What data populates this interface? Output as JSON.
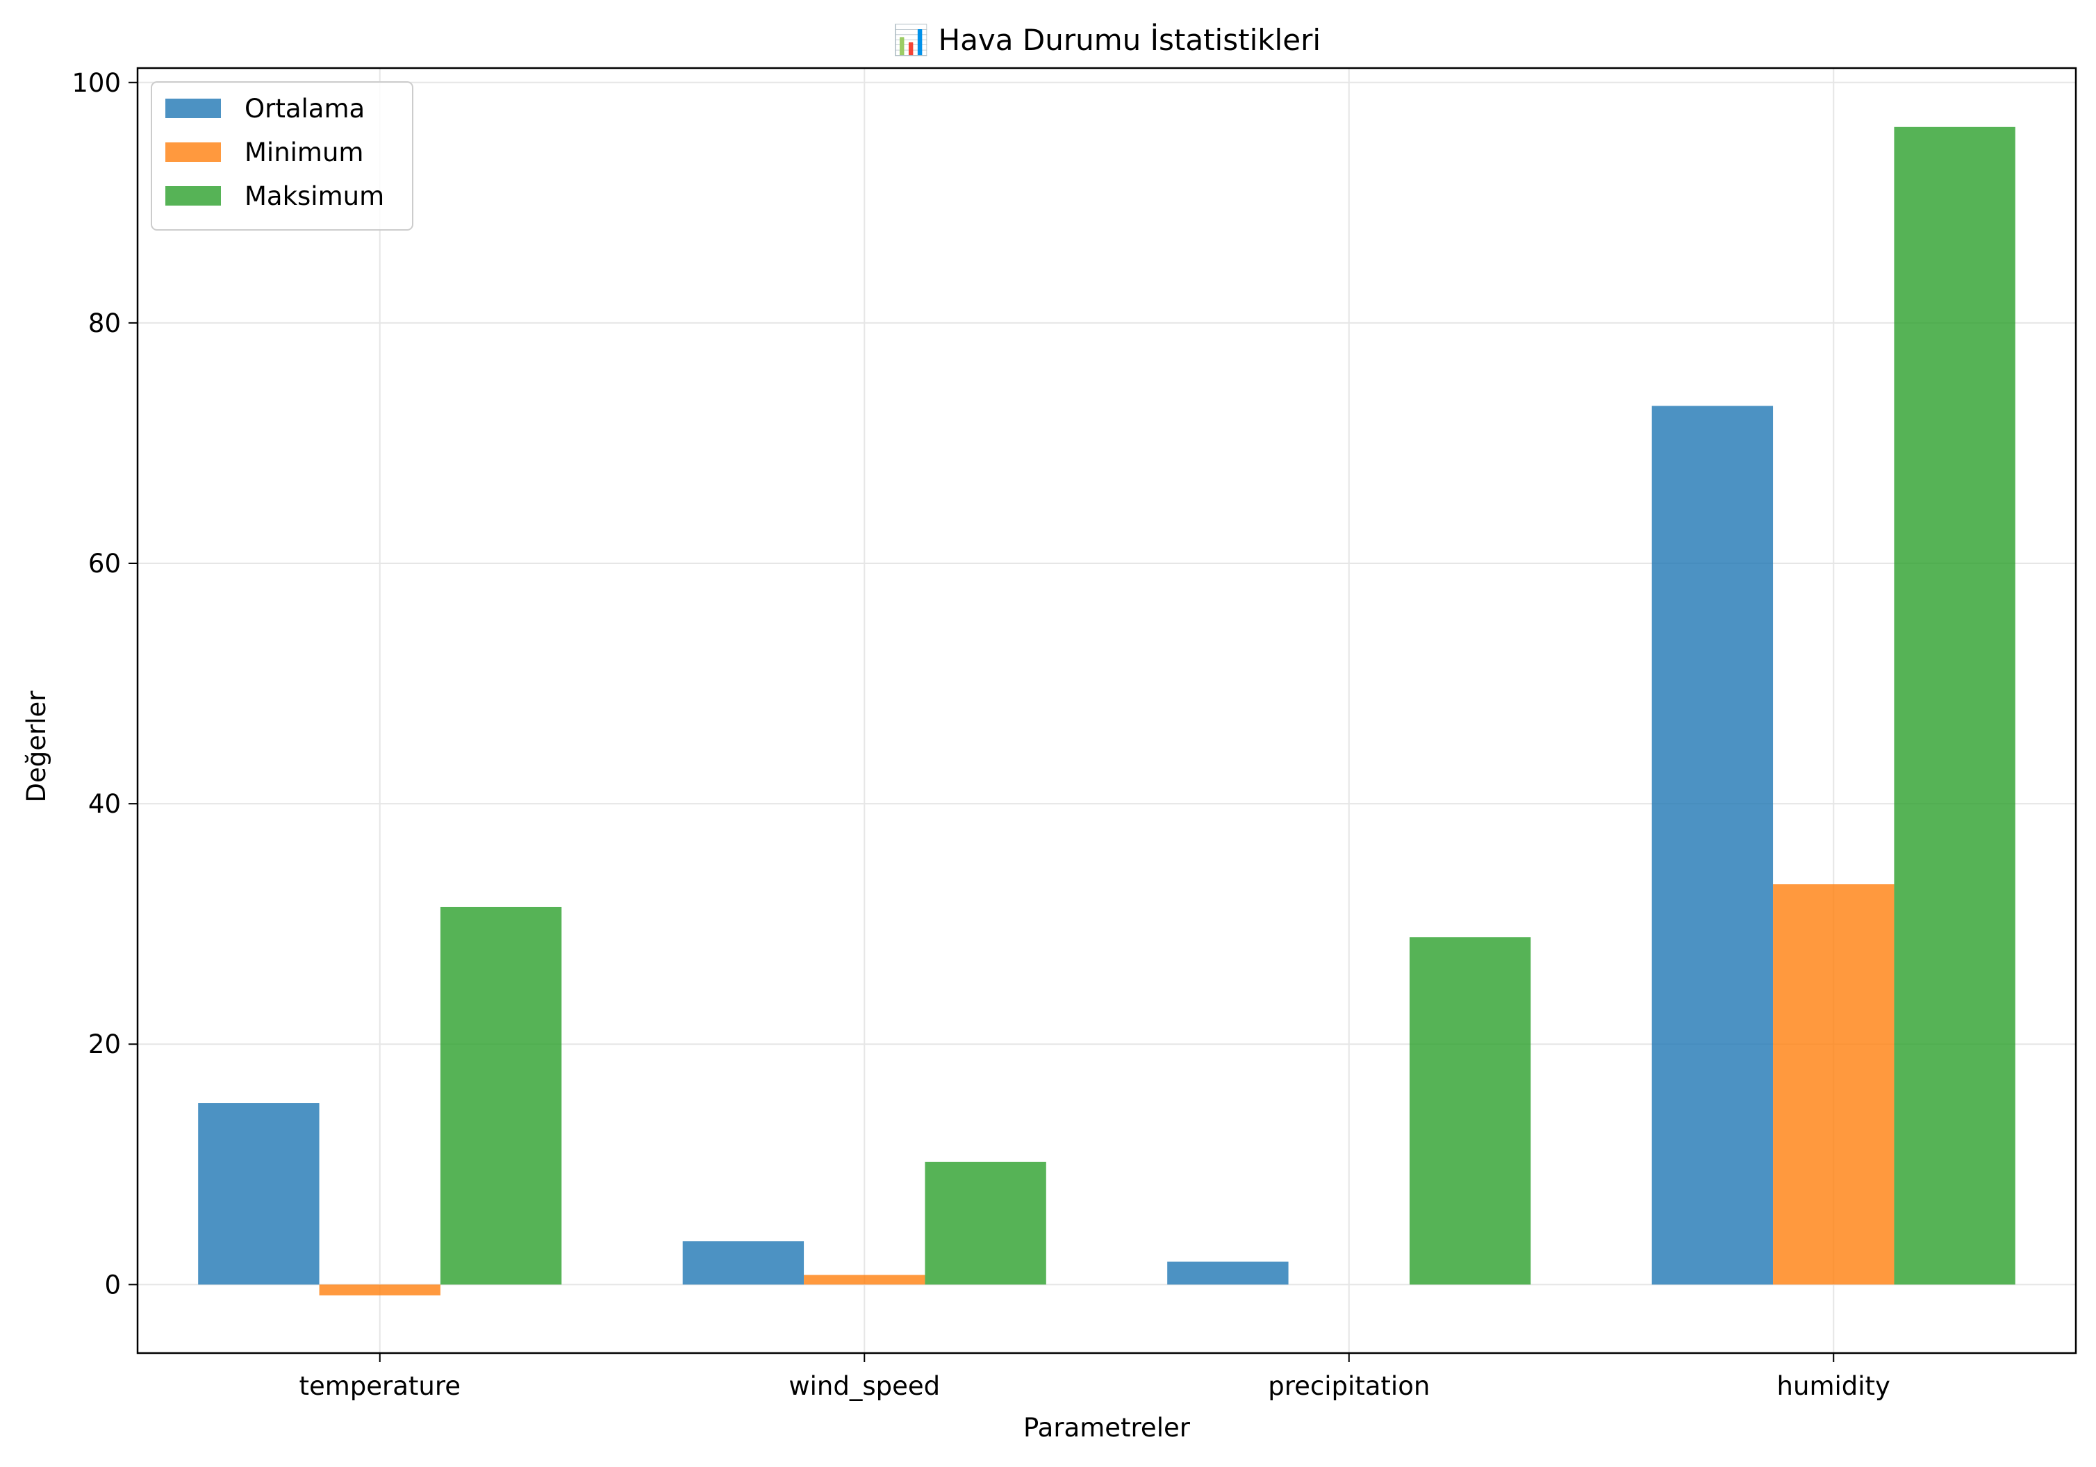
{
  "chart_data": {
    "type": "bar",
    "title": "📊 Hava Durumu İstatistikleri",
    "xlabel": "Parametreler",
    "ylabel": "Değerler",
    "categories": [
      "temperature",
      "wind_speed",
      "precipitation",
      "humidity"
    ],
    "series": [
      {
        "name": "Ortalama",
        "color": "#1f77b4",
        "values": [
          15.1,
          3.6,
          1.9,
          73.1
        ]
      },
      {
        "name": "Minimum",
        "color": "#ff7f0e",
        "values": [
          -0.9,
          0.8,
          0.0,
          33.3
        ]
      },
      {
        "name": "Maksimum",
        "color": "#2ca02c",
        "values": [
          31.4,
          10.2,
          28.9,
          96.3
        ]
      }
    ],
    "ylim": [
      -5.7,
      101.2
    ],
    "yticks": [
      0,
      20,
      40,
      60,
      80,
      100
    ],
    "grid": true,
    "legend_position": "top-left",
    "bar_opacity": 0.8
  }
}
